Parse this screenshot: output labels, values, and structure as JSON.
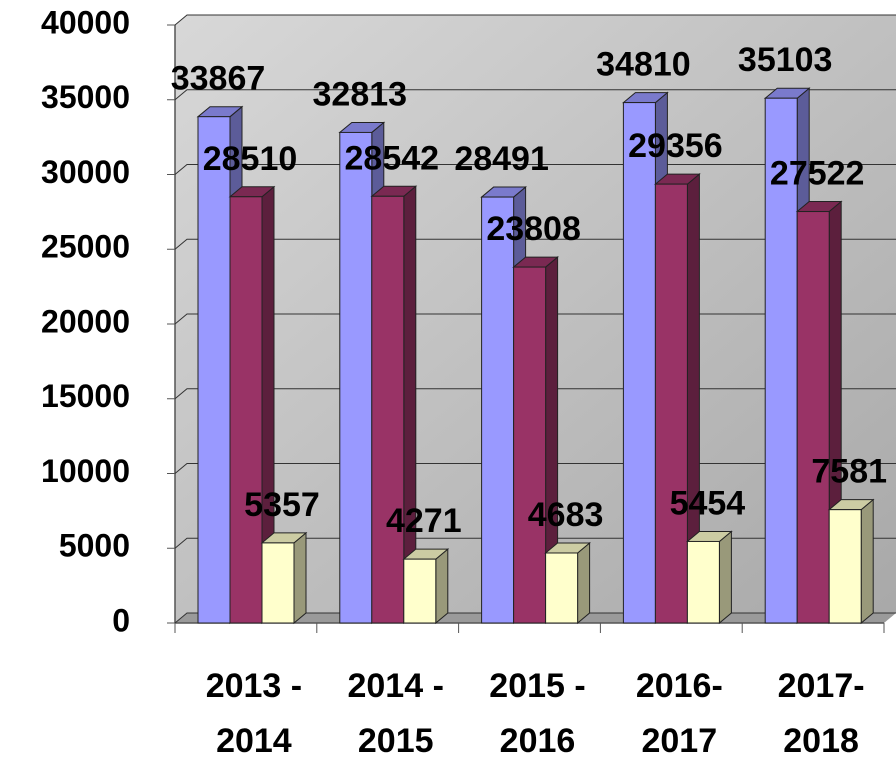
{
  "chart_data": {
    "type": "bar3d",
    "categories": [
      [
        "2013 -",
        "2014"
      ],
      [
        "2014 -",
        "2015"
      ],
      [
        "2015 -",
        "2016"
      ],
      [
        "2016-",
        "2017"
      ],
      [
        "2017-",
        "2018"
      ]
    ],
    "series": [
      {
        "color": "#9999ff",
        "values": [
          33867,
          32813,
          28491,
          34810,
          35103
        ]
      },
      {
        "color": "#993366",
        "values": [
          28510,
          28542,
          23808,
          29356,
          27522
        ]
      },
      {
        "color": "#ffffcc",
        "values": [
          5357,
          4271,
          4683,
          5454,
          7581
        ]
      }
    ],
    "ylim": [
      0,
      40000
    ],
    "yticks": [
      0,
      5000,
      10000,
      15000,
      20000,
      25000,
      30000,
      35000,
      40000
    ],
    "grid": true
  }
}
